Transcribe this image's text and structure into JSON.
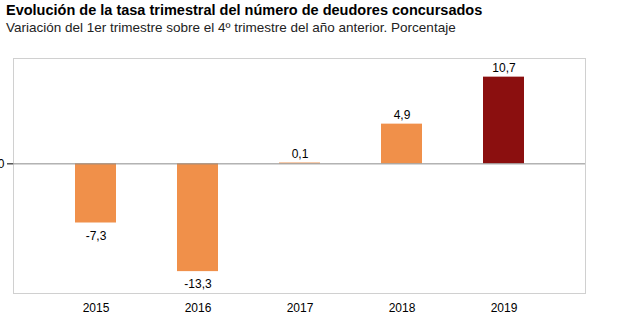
{
  "chart_data": {
    "type": "bar",
    "title": "Evolución de la tasa trimestral del número de deudores concursados",
    "subtitle": "Variación del 1er trimestre sobre el 4º trimestre del año anterior. Porcentaje",
    "categories": [
      "2015",
      "2016",
      "2017",
      "2018",
      "2019"
    ],
    "values": [
      -7.3,
      -13.3,
      0.1,
      4.9,
      10.7
    ],
    "value_labels": [
      "-7,3",
      "-13,3",
      "0,1",
      "4,9",
      "10,7"
    ],
    "colors": [
      "#f0904a",
      "#f0904a",
      "#f0904a",
      "#f0904a",
      "#8b0f0f"
    ],
    "ylim": [
      -16,
      13
    ],
    "yticks": [
      0
    ],
    "data_labels": true,
    "tick_labels": "x",
    "grid": false
  }
}
